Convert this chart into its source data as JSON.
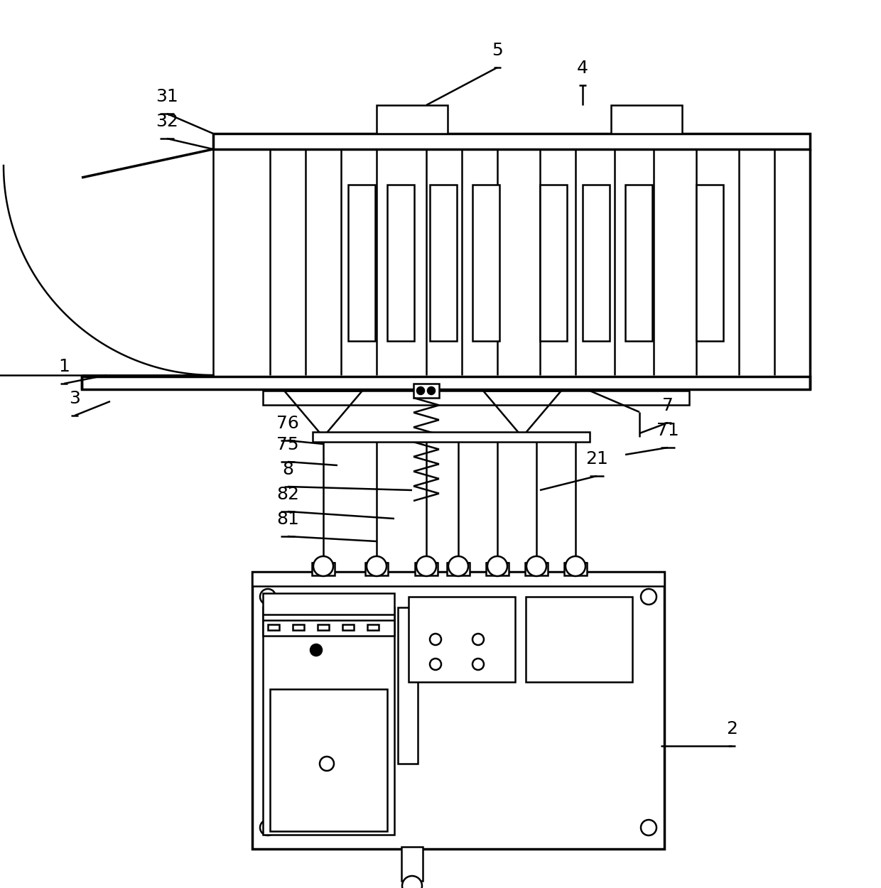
{
  "bg_color": "#ffffff",
  "lc": "#000000",
  "lw": 1.8,
  "lw2": 2.5,
  "figsize": [
    12.4,
    12.5
  ],
  "dpi": 100
}
